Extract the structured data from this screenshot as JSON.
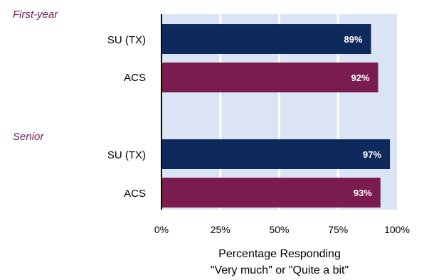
{
  "chart_data": {
    "type": "bar",
    "orientation": "horizontal",
    "groups": [
      {
        "name": "First-year",
        "bars": [
          {
            "category": "SU (TX)",
            "value": 89,
            "label": "89%"
          },
          {
            "category": "ACS",
            "value": 92,
            "label": "92%"
          }
        ]
      },
      {
        "name": "Senior",
        "bars": [
          {
            "category": "SU (TX)",
            "value": 97,
            "label": "97%"
          },
          {
            "category": "ACS",
            "value": 93,
            "label": "93%"
          }
        ]
      }
    ],
    "xlim": [
      0,
      100
    ],
    "xticks": [
      "0%",
      "25%",
      "50%",
      "75%",
      "100%"
    ],
    "xlabel_lines": [
      "Percentage Responding",
      "\"Very much\" or \"Quite a bit\""
    ],
    "grid": true,
    "colors": {
      "SU (TX)": "#0e2a5c",
      "ACS": "#7a1c50",
      "plot_background": "#dae4f5",
      "group_label": "#7a1c50"
    }
  }
}
